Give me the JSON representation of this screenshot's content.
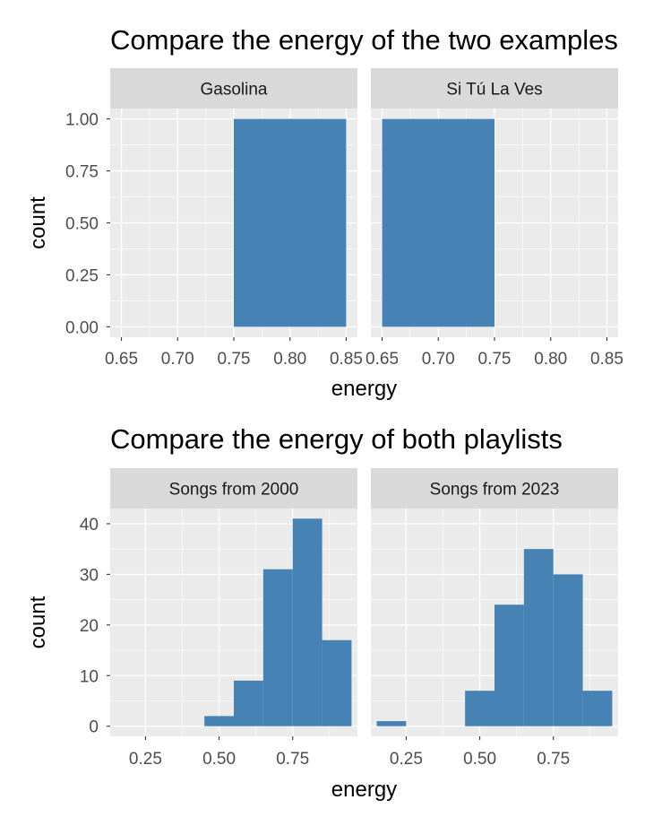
{
  "chart_data": [
    {
      "type": "bar",
      "title": "Compare the energy of the two examples",
      "xlabel": "energy",
      "ylabel": "count",
      "xlim": [
        0.64,
        0.86
      ],
      "ylim": [
        -0.05,
        1.05
      ],
      "x_ticks": [
        0.65,
        0.7,
        0.75,
        0.8,
        0.85
      ],
      "x_tick_labels": [
        "0.65",
        "0.70",
        "0.75",
        "0.80",
        "0.85"
      ],
      "y_ticks": [
        0,
        0.25,
        0.5,
        0.75,
        1.0
      ],
      "y_tick_labels": [
        "0.00",
        "0.25",
        "0.50",
        "0.75",
        "1.00"
      ],
      "bar_color": "#4682B4",
      "panel_bg": "#EBEBEB",
      "strip_bg": "#D9D9D9",
      "panels": [
        {
          "label": "Gasolina",
          "bins": [
            {
              "x0": 0.75,
              "x1": 0.85,
              "count": 1
            }
          ]
        },
        {
          "label": "Si Tú La Ves",
          "bins": [
            {
              "x0": 0.65,
              "x1": 0.75,
              "count": 1
            }
          ]
        }
      ]
    },
    {
      "type": "bar",
      "title": "Compare the energy of both playlists",
      "xlabel": "energy",
      "ylabel": "count",
      "xlim": [
        0.13,
        0.97
      ],
      "ylim": [
        -2,
        43
      ],
      "x_ticks": [
        0.25,
        0.5,
        0.75
      ],
      "x_tick_labels": [
        "0.25",
        "0.50",
        "0.75"
      ],
      "y_ticks": [
        0,
        10,
        20,
        30,
        40
      ],
      "y_tick_labels": [
        "0",
        "10",
        "20",
        "30",
        "40"
      ],
      "bar_color": "#4682B4",
      "panel_bg": "#EBEBEB",
      "strip_bg": "#D9D9D9",
      "panels": [
        {
          "label": "Songs from 2000",
          "bins": [
            {
              "x0": 0.45,
              "x1": 0.55,
              "count": 2
            },
            {
              "x0": 0.55,
              "x1": 0.65,
              "count": 9
            },
            {
              "x0": 0.65,
              "x1": 0.75,
              "count": 31
            },
            {
              "x0": 0.75,
              "x1": 0.85,
              "count": 41
            },
            {
              "x0": 0.85,
              "x1": 0.95,
              "count": 17
            }
          ]
        },
        {
          "label": "Songs from 2023",
          "bins": [
            {
              "x0": 0.15,
              "x1": 0.25,
              "count": 1
            },
            {
              "x0": 0.45,
              "x1": 0.55,
              "count": 7
            },
            {
              "x0": 0.55,
              "x1": 0.65,
              "count": 24
            },
            {
              "x0": 0.65,
              "x1": 0.75,
              "count": 35
            },
            {
              "x0": 0.75,
              "x1": 0.85,
              "count": 30
            },
            {
              "x0": 0.85,
              "x1": 0.95,
              "count": 7
            }
          ]
        }
      ]
    }
  ]
}
